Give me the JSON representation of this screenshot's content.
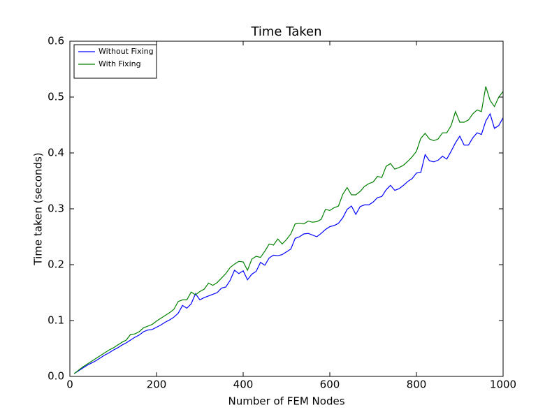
{
  "chart_data": {
    "type": "line",
    "title": "Time Taken",
    "x_label": "Number of FEM Nodes",
    "y_label": "Time taken (seconds)",
    "x": [
      10,
      20,
      30,
      40,
      50,
      60,
      70,
      80,
      90,
      100,
      110,
      120,
      130,
      140,
      150,
      160,
      170,
      180,
      190,
      200,
      210,
      220,
      230,
      240,
      250,
      260,
      270,
      280,
      290,
      300,
      310,
      320,
      330,
      340,
      350,
      360,
      370,
      380,
      390,
      400,
      410,
      420,
      430,
      440,
      450,
      460,
      470,
      480,
      490,
      500,
      510,
      520,
      530,
      540,
      550,
      560,
      570,
      580,
      590,
      600,
      610,
      620,
      630,
      640,
      650,
      660,
      670,
      680,
      690,
      700,
      710,
      720,
      730,
      740,
      750,
      760,
      770,
      780,
      790,
      800,
      810,
      820,
      830,
      840,
      850,
      860,
      870,
      880,
      890,
      900,
      910,
      920,
      930,
      940,
      950,
      960,
      970,
      980,
      990,
      1000
    ],
    "series": [
      {
        "name": "Without Fixing",
        "color": "#0000ff",
        "values": [
          0.005,
          0.01,
          0.015,
          0.02,
          0.024,
          0.028,
          0.033,
          0.038,
          0.042,
          0.047,
          0.051,
          0.056,
          0.06,
          0.065,
          0.07,
          0.074,
          0.08,
          0.083,
          0.084,
          0.088,
          0.092,
          0.097,
          0.101,
          0.106,
          0.113,
          0.127,
          0.122,
          0.13,
          0.148,
          0.137,
          0.141,
          0.144,
          0.147,
          0.15,
          0.158,
          0.16,
          0.172,
          0.19,
          0.184,
          0.189,
          0.173,
          0.183,
          0.188,
          0.204,
          0.199,
          0.212,
          0.217,
          0.216,
          0.218,
          0.223,
          0.228,
          0.247,
          0.25,
          0.255,
          0.256,
          0.253,
          0.25,
          0.256,
          0.263,
          0.268,
          0.27,
          0.274,
          0.284,
          0.299,
          0.305,
          0.29,
          0.304,
          0.307,
          0.307,
          0.312,
          0.32,
          0.322,
          0.334,
          0.342,
          0.333,
          0.336,
          0.342,
          0.349,
          0.354,
          0.364,
          0.365,
          0.397,
          0.386,
          0.384,
          0.387,
          0.394,
          0.389,
          0.403,
          0.418,
          0.43,
          0.414,
          0.414,
          0.427,
          0.436,
          0.433,
          0.457,
          0.47,
          0.444,
          0.449,
          0.463
        ]
      },
      {
        "name": "With Fixing",
        "color": "#008000",
        "values": [
          0.005,
          0.011,
          0.017,
          0.022,
          0.027,
          0.032,
          0.037,
          0.042,
          0.047,
          0.051,
          0.056,
          0.061,
          0.065,
          0.075,
          0.076,
          0.08,
          0.087,
          0.09,
          0.093,
          0.099,
          0.104,
          0.109,
          0.114,
          0.12,
          0.134,
          0.137,
          0.137,
          0.151,
          0.146,
          0.152,
          0.156,
          0.167,
          0.163,
          0.168,
          0.176,
          0.184,
          0.195,
          0.201,
          0.206,
          0.205,
          0.19,
          0.21,
          0.215,
          0.213,
          0.224,
          0.237,
          0.235,
          0.246,
          0.237,
          0.245,
          0.255,
          0.273,
          0.274,
          0.273,
          0.278,
          0.276,
          0.277,
          0.281,
          0.299,
          0.297,
          0.302,
          0.305,
          0.326,
          0.338,
          0.325,
          0.325,
          0.331,
          0.34,
          0.345,
          0.348,
          0.358,
          0.356,
          0.376,
          0.381,
          0.371,
          0.374,
          0.378,
          0.385,
          0.393,
          0.403,
          0.426,
          0.435,
          0.425,
          0.422,
          0.425,
          0.436,
          0.436,
          0.449,
          0.474,
          0.455,
          0.455,
          0.459,
          0.47,
          0.477,
          0.474,
          0.519,
          0.494,
          0.483,
          0.5,
          0.51
        ]
      }
    ],
    "xlim": [
      0,
      1000
    ],
    "xticks": [
      0,
      200,
      400,
      600,
      800,
      1000
    ],
    "ylim": [
      0,
      0.6
    ],
    "yticks": [
      {
        "value": 0,
        "label": "0.0"
      },
      0.1,
      0.2,
      0.3,
      0.4,
      0.5,
      0.6
    ],
    "legend": "upper left"
  }
}
